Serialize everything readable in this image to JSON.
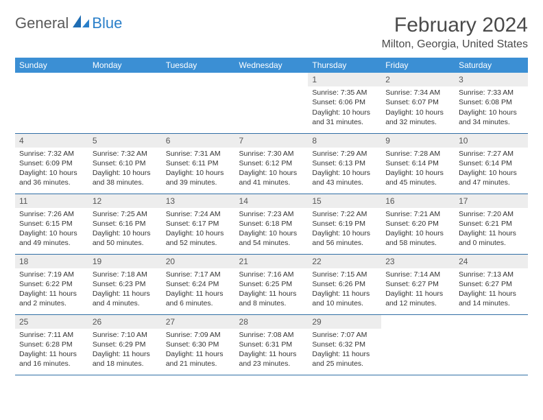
{
  "logo": {
    "text_general": "General",
    "text_blue": "Blue"
  },
  "header": {
    "month_title": "February 2024",
    "location": "Milton, Georgia, United States"
  },
  "style": {
    "header_bg": "#3b8fd4",
    "header_text": "#ffffff",
    "daynum_bg": "#ededed",
    "daynum_text": "#555555",
    "cell_border": "#2e6da4",
    "body_text": "#333333",
    "logo_blue": "#2a7fc9",
    "logo_gray": "#5a5a5a",
    "font_day": 10.5,
    "font_header": 12,
    "font_title": 30,
    "font_location": 16
  },
  "day_labels": [
    "Sunday",
    "Monday",
    "Tuesday",
    "Wednesday",
    "Thursday",
    "Friday",
    "Saturday"
  ],
  "weeks": [
    [
      null,
      null,
      null,
      null,
      {
        "n": "1",
        "sunrise": "Sunrise: 7:35 AM",
        "sunset": "Sunset: 6:06 PM",
        "day1": "Daylight: 10 hours",
        "day2": "and 31 minutes."
      },
      {
        "n": "2",
        "sunrise": "Sunrise: 7:34 AM",
        "sunset": "Sunset: 6:07 PM",
        "day1": "Daylight: 10 hours",
        "day2": "and 32 minutes."
      },
      {
        "n": "3",
        "sunrise": "Sunrise: 7:33 AM",
        "sunset": "Sunset: 6:08 PM",
        "day1": "Daylight: 10 hours",
        "day2": "and 34 minutes."
      }
    ],
    [
      {
        "n": "4",
        "sunrise": "Sunrise: 7:32 AM",
        "sunset": "Sunset: 6:09 PM",
        "day1": "Daylight: 10 hours",
        "day2": "and 36 minutes."
      },
      {
        "n": "5",
        "sunrise": "Sunrise: 7:32 AM",
        "sunset": "Sunset: 6:10 PM",
        "day1": "Daylight: 10 hours",
        "day2": "and 38 minutes."
      },
      {
        "n": "6",
        "sunrise": "Sunrise: 7:31 AM",
        "sunset": "Sunset: 6:11 PM",
        "day1": "Daylight: 10 hours",
        "day2": "and 39 minutes."
      },
      {
        "n": "7",
        "sunrise": "Sunrise: 7:30 AM",
        "sunset": "Sunset: 6:12 PM",
        "day1": "Daylight: 10 hours",
        "day2": "and 41 minutes."
      },
      {
        "n": "8",
        "sunrise": "Sunrise: 7:29 AM",
        "sunset": "Sunset: 6:13 PM",
        "day1": "Daylight: 10 hours",
        "day2": "and 43 minutes."
      },
      {
        "n": "9",
        "sunrise": "Sunrise: 7:28 AM",
        "sunset": "Sunset: 6:14 PM",
        "day1": "Daylight: 10 hours",
        "day2": "and 45 minutes."
      },
      {
        "n": "10",
        "sunrise": "Sunrise: 7:27 AM",
        "sunset": "Sunset: 6:14 PM",
        "day1": "Daylight: 10 hours",
        "day2": "and 47 minutes."
      }
    ],
    [
      {
        "n": "11",
        "sunrise": "Sunrise: 7:26 AM",
        "sunset": "Sunset: 6:15 PM",
        "day1": "Daylight: 10 hours",
        "day2": "and 49 minutes."
      },
      {
        "n": "12",
        "sunrise": "Sunrise: 7:25 AM",
        "sunset": "Sunset: 6:16 PM",
        "day1": "Daylight: 10 hours",
        "day2": "and 50 minutes."
      },
      {
        "n": "13",
        "sunrise": "Sunrise: 7:24 AM",
        "sunset": "Sunset: 6:17 PM",
        "day1": "Daylight: 10 hours",
        "day2": "and 52 minutes."
      },
      {
        "n": "14",
        "sunrise": "Sunrise: 7:23 AM",
        "sunset": "Sunset: 6:18 PM",
        "day1": "Daylight: 10 hours",
        "day2": "and 54 minutes."
      },
      {
        "n": "15",
        "sunrise": "Sunrise: 7:22 AM",
        "sunset": "Sunset: 6:19 PM",
        "day1": "Daylight: 10 hours",
        "day2": "and 56 minutes."
      },
      {
        "n": "16",
        "sunrise": "Sunrise: 7:21 AM",
        "sunset": "Sunset: 6:20 PM",
        "day1": "Daylight: 10 hours",
        "day2": "and 58 minutes."
      },
      {
        "n": "17",
        "sunrise": "Sunrise: 7:20 AM",
        "sunset": "Sunset: 6:21 PM",
        "day1": "Daylight: 11 hours",
        "day2": "and 0 minutes."
      }
    ],
    [
      {
        "n": "18",
        "sunrise": "Sunrise: 7:19 AM",
        "sunset": "Sunset: 6:22 PM",
        "day1": "Daylight: 11 hours",
        "day2": "and 2 minutes."
      },
      {
        "n": "19",
        "sunrise": "Sunrise: 7:18 AM",
        "sunset": "Sunset: 6:23 PM",
        "day1": "Daylight: 11 hours",
        "day2": "and 4 minutes."
      },
      {
        "n": "20",
        "sunrise": "Sunrise: 7:17 AM",
        "sunset": "Sunset: 6:24 PM",
        "day1": "Daylight: 11 hours",
        "day2": "and 6 minutes."
      },
      {
        "n": "21",
        "sunrise": "Sunrise: 7:16 AM",
        "sunset": "Sunset: 6:25 PM",
        "day1": "Daylight: 11 hours",
        "day2": "and 8 minutes."
      },
      {
        "n": "22",
        "sunrise": "Sunrise: 7:15 AM",
        "sunset": "Sunset: 6:26 PM",
        "day1": "Daylight: 11 hours",
        "day2": "and 10 minutes."
      },
      {
        "n": "23",
        "sunrise": "Sunrise: 7:14 AM",
        "sunset": "Sunset: 6:27 PM",
        "day1": "Daylight: 11 hours",
        "day2": "and 12 minutes."
      },
      {
        "n": "24",
        "sunrise": "Sunrise: 7:13 AM",
        "sunset": "Sunset: 6:27 PM",
        "day1": "Daylight: 11 hours",
        "day2": "and 14 minutes."
      }
    ],
    [
      {
        "n": "25",
        "sunrise": "Sunrise: 7:11 AM",
        "sunset": "Sunset: 6:28 PM",
        "day1": "Daylight: 11 hours",
        "day2": "and 16 minutes."
      },
      {
        "n": "26",
        "sunrise": "Sunrise: 7:10 AM",
        "sunset": "Sunset: 6:29 PM",
        "day1": "Daylight: 11 hours",
        "day2": "and 18 minutes."
      },
      {
        "n": "27",
        "sunrise": "Sunrise: 7:09 AM",
        "sunset": "Sunset: 6:30 PM",
        "day1": "Daylight: 11 hours",
        "day2": "and 21 minutes."
      },
      {
        "n": "28",
        "sunrise": "Sunrise: 7:08 AM",
        "sunset": "Sunset: 6:31 PM",
        "day1": "Daylight: 11 hours",
        "day2": "and 23 minutes."
      },
      {
        "n": "29",
        "sunrise": "Sunrise: 7:07 AM",
        "sunset": "Sunset: 6:32 PM",
        "day1": "Daylight: 11 hours",
        "day2": "and 25 minutes."
      },
      null,
      null
    ]
  ]
}
